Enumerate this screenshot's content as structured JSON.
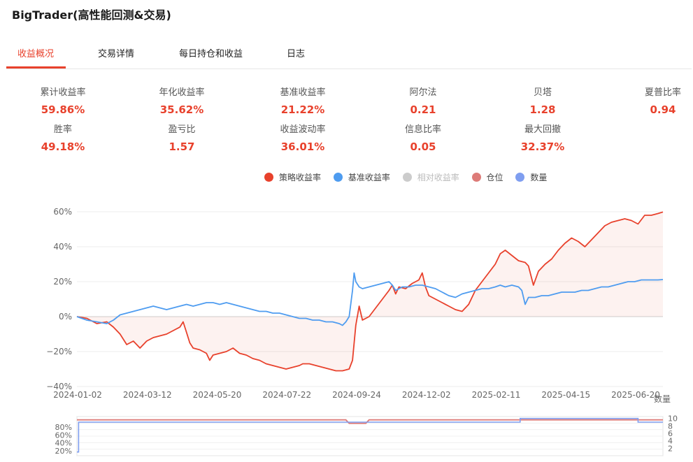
{
  "app": {
    "title": "BigTrader(高性能回测&交易)"
  },
  "tabs": [
    {
      "label": "收益概况",
      "active": true
    },
    {
      "label": "交易详情",
      "active": false
    },
    {
      "label": "每日持仓和收益",
      "active": false
    },
    {
      "label": "日志",
      "active": false
    }
  ],
  "metrics": [
    {
      "label": "累计收益率",
      "value": "59.86%"
    },
    {
      "label": "年化收益率",
      "value": "35.62%"
    },
    {
      "label": "基准收益率",
      "value": "21.22%"
    },
    {
      "label": "阿尔法",
      "value": "0.21"
    },
    {
      "label": "贝塔",
      "value": "1.28"
    },
    {
      "label": "夏普比率",
      "value": "0.94"
    },
    {
      "label": "胜率",
      "value": "49.18%"
    },
    {
      "label": "盈亏比",
      "value": "1.57"
    },
    {
      "label": "收益波动率",
      "value": "36.01%"
    },
    {
      "label": "信息比率",
      "value": "0.05"
    },
    {
      "label": "最大回撤",
      "value": "32.37%"
    }
  ],
  "legend": [
    {
      "label": "策略收益率",
      "color": "#e8412c",
      "enabled": true
    },
    {
      "label": "基准收益率",
      "color": "#4e9cf0",
      "enabled": true
    },
    {
      "label": "相对收益率",
      "color": "#cccccc",
      "enabled": false
    },
    {
      "label": "仓位",
      "color": "#dd7b78",
      "enabled": true
    },
    {
      "label": "数量",
      "color": "#7f9ef0",
      "enabled": true
    }
  ],
  "chart_data": [
    {
      "type": "line",
      "x_ticks": [
        "2024-01-02",
        "2024-03-12",
        "2024-05-20",
        "2024-07-22",
        "2024-09-24",
        "2024-12-02",
        "2025-02-11",
        "2025-04-15",
        "2025-06-20"
      ],
      "y_ticks": [
        "60%",
        "40%",
        "20%",
        "0%",
        "−20%",
        "−40%"
      ],
      "ylim": [
        -40,
        60
      ],
      "grid": true,
      "x_extra_label": "数量",
      "series": [
        {
          "name": "策略收益率",
          "color": "#e8412c",
          "area_fill": true,
          "points": [
            [
              0,
              0
            ],
            [
              6,
              -1
            ],
            [
              12,
              -4
            ],
            [
              18,
              -3
            ],
            [
              22,
              -6
            ],
            [
              26,
              -10
            ],
            [
              30,
              -16
            ],
            [
              34,
              -14
            ],
            [
              38,
              -18
            ],
            [
              42,
              -14
            ],
            [
              46,
              -12
            ],
            [
              50,
              -11
            ],
            [
              54,
              -10
            ],
            [
              58,
              -8
            ],
            [
              62,
              -6
            ],
            [
              64,
              -3
            ],
            [
              66,
              -9
            ],
            [
              68,
              -15
            ],
            [
              70,
              -18
            ],
            [
              74,
              -19
            ],
            [
              78,
              -21
            ],
            [
              80,
              -25
            ],
            [
              82,
              -22
            ],
            [
              86,
              -21
            ],
            [
              90,
              -20
            ],
            [
              94,
              -18
            ],
            [
              98,
              -21
            ],
            [
              102,
              -22
            ],
            [
              106,
              -24
            ],
            [
              110,
              -25
            ],
            [
              114,
              -27
            ],
            [
              118,
              -28
            ],
            [
              122,
              -29
            ],
            [
              126,
              -30
            ],
            [
              130,
              -29
            ],
            [
              134,
              -28
            ],
            [
              136,
              -27
            ],
            [
              140,
              -27
            ],
            [
              144,
              -28
            ],
            [
              148,
              -29
            ],
            [
              152,
              -30
            ],
            [
              156,
              -31
            ],
            [
              160,
              -31
            ],
            [
              164,
              -30
            ],
            [
              166,
              -25
            ],
            [
              168,
              -5
            ],
            [
              170,
              6
            ],
            [
              172,
              -2
            ],
            [
              176,
              0
            ],
            [
              180,
              5
            ],
            [
              184,
              10
            ],
            [
              188,
              15
            ],
            [
              190,
              18
            ],
            [
              192,
              13
            ],
            [
              194,
              17
            ],
            [
              198,
              16
            ],
            [
              202,
              19
            ],
            [
              206,
              21
            ],
            [
              208,
              25
            ],
            [
              210,
              17
            ],
            [
              212,
              12
            ],
            [
              216,
              10
            ],
            [
              220,
              8
            ],
            [
              224,
              6
            ],
            [
              228,
              4
            ],
            [
              232,
              3
            ],
            [
              236,
              7
            ],
            [
              240,
              15
            ],
            [
              244,
              20
            ],
            [
              248,
              25
            ],
            [
              252,
              30
            ],
            [
              255,
              36
            ],
            [
              258,
              38
            ],
            [
              262,
              35
            ],
            [
              266,
              32
            ],
            [
              270,
              31
            ],
            [
              272,
              29
            ],
            [
              275,
              18
            ],
            [
              278,
              26
            ],
            [
              282,
              30
            ],
            [
              286,
              33
            ],
            [
              290,
              38
            ],
            [
              294,
              42
            ],
            [
              298,
              45
            ],
            [
              302,
              43
            ],
            [
              306,
              40
            ],
            [
              310,
              44
            ],
            [
              314,
              48
            ],
            [
              318,
              52
            ],
            [
              322,
              54
            ],
            [
              326,
              55
            ],
            [
              330,
              56
            ],
            [
              334,
              55
            ],
            [
              338,
              53
            ],
            [
              342,
              58
            ],
            [
              346,
              58
            ],
            [
              350,
              59
            ],
            [
              353,
              59.86
            ]
          ]
        },
        {
          "name": "基准收益率",
          "color": "#4e9cf0",
          "area_fill": false,
          "points": [
            [
              0,
              0
            ],
            [
              6,
              -2
            ],
            [
              12,
              -3
            ],
            [
              18,
              -4
            ],
            [
              22,
              -2
            ],
            [
              26,
              1
            ],
            [
              30,
              2
            ],
            [
              34,
              3
            ],
            [
              38,
              4
            ],
            [
              42,
              5
            ],
            [
              46,
              6
            ],
            [
              50,
              5
            ],
            [
              54,
              4
            ],
            [
              58,
              5
            ],
            [
              62,
              6
            ],
            [
              66,
              7
            ],
            [
              70,
              6
            ],
            [
              74,
              7
            ],
            [
              78,
              8
            ],
            [
              82,
              8
            ],
            [
              86,
              7
            ],
            [
              90,
              8
            ],
            [
              94,
              7
            ],
            [
              98,
              6
            ],
            [
              102,
              5
            ],
            [
              106,
              4
            ],
            [
              110,
              3
            ],
            [
              114,
              3
            ],
            [
              118,
              2
            ],
            [
              122,
              2
            ],
            [
              126,
              1
            ],
            [
              130,
              0
            ],
            [
              134,
              -1
            ],
            [
              138,
              -1
            ],
            [
              142,
              -2
            ],
            [
              146,
              -2
            ],
            [
              150,
              -3
            ],
            [
              154,
              -3
            ],
            [
              158,
              -4
            ],
            [
              160,
              -5
            ],
            [
              162,
              -3
            ],
            [
              164,
              0
            ],
            [
              166,
              15
            ],
            [
              167,
              25
            ],
            [
              168,
              20
            ],
            [
              170,
              17
            ],
            [
              172,
              16
            ],
            [
              176,
              17
            ],
            [
              180,
              18
            ],
            [
              184,
              19
            ],
            [
              188,
              20
            ],
            [
              190,
              18
            ],
            [
              192,
              15
            ],
            [
              196,
              17
            ],
            [
              200,
              17
            ],
            [
              204,
              18
            ],
            [
              208,
              18
            ],
            [
              212,
              17
            ],
            [
              216,
              16
            ],
            [
              220,
              14
            ],
            [
              224,
              12
            ],
            [
              228,
              11
            ],
            [
              232,
              13
            ],
            [
              236,
              14
            ],
            [
              240,
              15
            ],
            [
              244,
              16
            ],
            [
              248,
              16
            ],
            [
              252,
              17
            ],
            [
              255,
              18
            ],
            [
              258,
              17
            ],
            [
              262,
              18
            ],
            [
              266,
              17
            ],
            [
              268,
              15
            ],
            [
              270,
              7
            ],
            [
              272,
              11
            ],
            [
              276,
              11
            ],
            [
              280,
              12
            ],
            [
              284,
              12
            ],
            [
              288,
              13
            ],
            [
              292,
              14
            ],
            [
              296,
              14
            ],
            [
              300,
              14
            ],
            [
              304,
              15
            ],
            [
              308,
              15
            ],
            [
              312,
              16
            ],
            [
              316,
              17
            ],
            [
              320,
              17
            ],
            [
              324,
              18
            ],
            [
              328,
              19
            ],
            [
              332,
              20
            ],
            [
              336,
              20
            ],
            [
              340,
              21
            ],
            [
              344,
              21
            ],
            [
              348,
              21
            ],
            [
              350,
              21
            ],
            [
              353,
              21.22
            ]
          ]
        }
      ],
      "x_index_max": 353
    },
    {
      "type": "line",
      "y_ticks_left": [
        "80%",
        "60%",
        "40%",
        "20%"
      ],
      "y_ticks_right": [
        "10",
        "8",
        "6",
        "4",
        "2"
      ],
      "series": [
        {
          "name": "仓位",
          "color": "#dd7b78",
          "points": [
            [
              0,
              97
            ],
            [
              162,
              97
            ],
            [
              164,
              88
            ],
            [
              174,
              88
            ],
            [
              176,
              97
            ],
            [
              353,
              97
            ]
          ]
        },
        {
          "name": "数量",
          "color": "#7f9ef0",
          "points": [
            [
              0,
              1
            ],
            [
              1,
              9
            ],
            [
              266,
              9
            ],
            [
              267,
              10
            ],
            [
              337,
              10
            ],
            [
              338,
              9
            ],
            [
              353,
              9
            ]
          ]
        }
      ]
    }
  ]
}
